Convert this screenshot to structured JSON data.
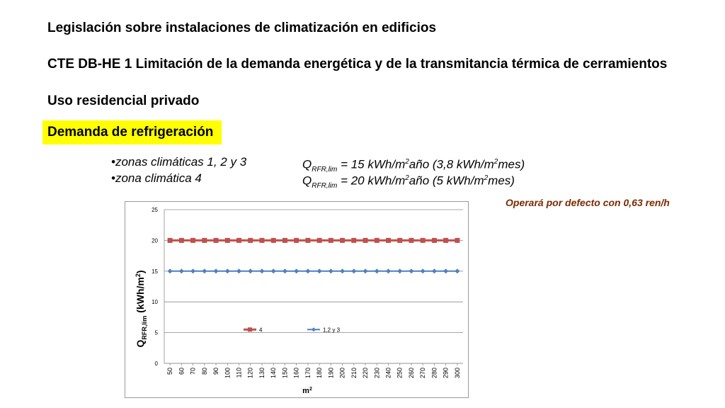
{
  "slide": {
    "title": "Legislación sobre instalaciones de climatización en edificios",
    "subtitle": "CTE DB-HE 1 Limitación de la demanda energética y de la transmitancia térmica de cerramientos",
    "use": "Uso residencial privado",
    "highlight": "Demanda de refrigeración",
    "highlight_color": "#ffff00",
    "bullets": [
      {
        "label": "•zonas climáticas 1, 2 y 3",
        "q": "Q",
        "q_sub": "RFR,lim",
        "eq": " = 15 kWh/m",
        "sup1": "2",
        "mid": "año (3,8 kWh/m",
        "sup2": "2",
        "end": "mes)"
      },
      {
        "label": "•zona climática  4",
        "q": "Q",
        "q_sub": "RFR,lim",
        "eq": " = 20 kWh/m",
        "sup1": "2",
        "mid": "año (5 kWh/m",
        "sup2": "2",
        "end": "mes)"
      }
    ],
    "note": "Operará por defecto con 0,63 ren/h",
    "note_color": "#7a2a00"
  },
  "chart_data": {
    "type": "line",
    "x": [
      50,
      60,
      70,
      80,
      90,
      100,
      110,
      120,
      130,
      140,
      150,
      160,
      170,
      180,
      190,
      200,
      210,
      220,
      230,
      240,
      250,
      260,
      270,
      280,
      290,
      300
    ],
    "series": [
      {
        "name": "4",
        "values": [
          20,
          20,
          20,
          20,
          20,
          20,
          20,
          20,
          20,
          20,
          20,
          20,
          20,
          20,
          20,
          20,
          20,
          20,
          20,
          20,
          20,
          20,
          20,
          20,
          20,
          20
        ],
        "color": "#c0504d",
        "marker": "square"
      },
      {
        "name": "1,2 y 3",
        "values": [
          15,
          15,
          15,
          15,
          15,
          15,
          15,
          15,
          15,
          15,
          15,
          15,
          15,
          15,
          15,
          15,
          15,
          15,
          15,
          15,
          15,
          15,
          15,
          15,
          15,
          15
        ],
        "color": "#4f81bd",
        "marker": "diamond"
      }
    ],
    "ylim": [
      0,
      25
    ],
    "yticks": [
      0,
      5,
      10,
      15,
      20,
      25
    ],
    "ylabel": {
      "main": "Q",
      "sub": "RFR,lim",
      "unit": " (kWh/m",
      "unit_sup": "2",
      "unit_end": ")"
    },
    "xlabel": {
      "main": "m",
      "sup": "2"
    },
    "grid": true,
    "legend": "inside-lower-center"
  }
}
